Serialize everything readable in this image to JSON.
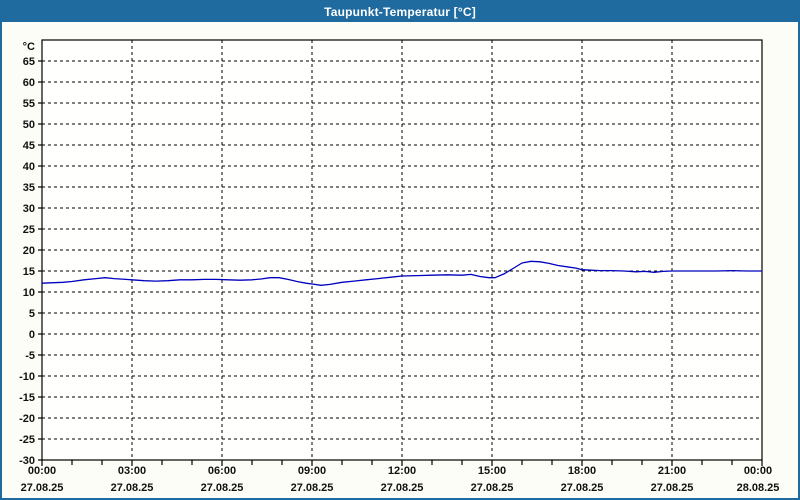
{
  "window": {
    "title": "Taupunkt-Temperatur [°C]"
  },
  "colors": {
    "titlebar": "#1f6a9e",
    "window_border": "#1f6a9e",
    "background": "#fcfdf6",
    "plot_fill": "#fffffe",
    "plot_border": "#000000",
    "grid": "#000000",
    "line": "#0000bd",
    "label": "#111111",
    "title_text": "#ffffff"
  },
  "chart_data": {
    "type": "line",
    "title": "Taupunkt-Temperatur [°C]",
    "ylabel": "°C",
    "xlabel": "",
    "ylim": [
      -30,
      70
    ],
    "y_ticks": [
      -30,
      -25,
      -20,
      -15,
      -10,
      -5,
      0,
      5,
      10,
      15,
      20,
      25,
      30,
      35,
      40,
      45,
      50,
      55,
      60,
      65
    ],
    "grid": "dashed",
    "legend": "none",
    "x_axis": {
      "span_hours": 24,
      "minor_tick_every_hours": 1,
      "major_ticks": [
        {
          "hour": 0,
          "time": "00:00",
          "date": "27.08.25"
        },
        {
          "hour": 3,
          "time": "03:00",
          "date": "27.08.25"
        },
        {
          "hour": 6,
          "time": "06:00",
          "date": "27.08.25"
        },
        {
          "hour": 9,
          "time": "09:00",
          "date": "27.08.25"
        },
        {
          "hour": 12,
          "time": "12:00",
          "date": "27.08.25"
        },
        {
          "hour": 15,
          "time": "15:00",
          "date": "27.08.25"
        },
        {
          "hour": 18,
          "time": "18:00",
          "date": "27.08.25"
        },
        {
          "hour": 21,
          "time": "21:00",
          "date": "27.08.25"
        },
        {
          "hour": 24,
          "time": "00:00",
          "date": "28.08.25"
        }
      ]
    },
    "series": [
      {
        "name": "Taupunkt-Temperatur",
        "unit": "°C",
        "points": [
          [
            0,
            12.1
          ],
          [
            0.3,
            12.2
          ],
          [
            0.7,
            12.3
          ],
          [
            1,
            12.5
          ],
          [
            1.4,
            12.9
          ],
          [
            1.8,
            13.2
          ],
          [
            2.1,
            13.4
          ],
          [
            2.4,
            13.2
          ],
          [
            2.8,
            13.0
          ],
          [
            3,
            12.9
          ],
          [
            3.4,
            12.7
          ],
          [
            3.8,
            12.6
          ],
          [
            4.2,
            12.7
          ],
          [
            4.6,
            12.9
          ],
          [
            5,
            12.9
          ],
          [
            5.4,
            13.0
          ],
          [
            5.8,
            13.0
          ],
          [
            6.2,
            12.9
          ],
          [
            6.6,
            12.8
          ],
          [
            7,
            12.9
          ],
          [
            7.3,
            13.1
          ],
          [
            7.6,
            13.4
          ],
          [
            7.9,
            13.4
          ],
          [
            8.2,
            13.0
          ],
          [
            8.5,
            12.5
          ],
          [
            8.8,
            12.1
          ],
          [
            9,
            11.9
          ],
          [
            9.3,
            11.6
          ],
          [
            9.6,
            11.8
          ],
          [
            10,
            12.3
          ],
          [
            10.4,
            12.6
          ],
          [
            10.8,
            12.9
          ],
          [
            11.2,
            13.2
          ],
          [
            11.6,
            13.5
          ],
          [
            12,
            13.8
          ],
          [
            12.5,
            13.9
          ],
          [
            13,
            14.0
          ],
          [
            13.5,
            14.1
          ],
          [
            14,
            14.0
          ],
          [
            14.3,
            14.2
          ],
          [
            14.6,
            13.7
          ],
          [
            14.9,
            13.4
          ],
          [
            15.1,
            13.4
          ],
          [
            15.4,
            14.3
          ],
          [
            15.7,
            15.6
          ],
          [
            16,
            16.9
          ],
          [
            16.3,
            17.3
          ],
          [
            16.6,
            17.2
          ],
          [
            16.9,
            16.8
          ],
          [
            17.2,
            16.3
          ],
          [
            17.5,
            16.0
          ],
          [
            17.8,
            15.7
          ],
          [
            18,
            15.3
          ],
          [
            18.3,
            15.2
          ],
          [
            18.6,
            15.1
          ],
          [
            19,
            15.1
          ],
          [
            19.4,
            15.0
          ],
          [
            19.8,
            14.8
          ],
          [
            20.1,
            14.9
          ],
          [
            20.4,
            14.7
          ],
          [
            20.7,
            14.9
          ],
          [
            21,
            15.0
          ],
          [
            21.5,
            15.0
          ],
          [
            22,
            15.0
          ],
          [
            22.5,
            15.0
          ],
          [
            23,
            15.1
          ],
          [
            23.5,
            15.0
          ],
          [
            24,
            15.0
          ]
        ]
      }
    ]
  }
}
